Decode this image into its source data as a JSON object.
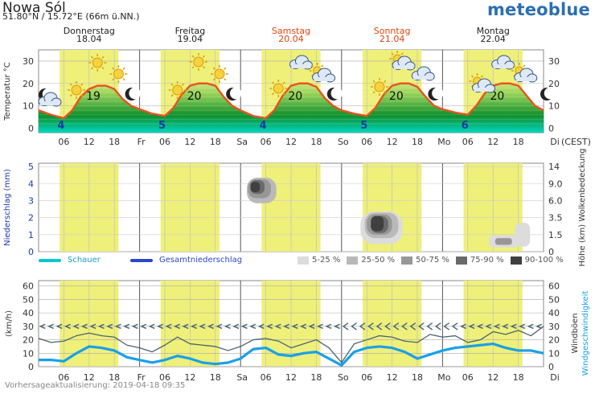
{
  "header": {
    "location": "Nowa Sól",
    "coords": "51.80°N / 15.72°E (66m ü.NN.)",
    "brand": "meteoblue"
  },
  "footer": {
    "update": "Vorhersageaktualisierung: 2019-04-18 09:35"
  },
  "days": [
    {
      "name": "Donnerstag",
      "date": "18.04",
      "weekend": false,
      "tmin": "4",
      "tmax": "19",
      "abbr": "",
      "icons": [
        "sun",
        "sun",
        "sun"
      ]
    },
    {
      "name": "Freitag",
      "date": "19.04",
      "weekend": false,
      "tmin": "5",
      "tmax": "20",
      "abbr": "Fr",
      "icons": [
        "sun",
        "sun",
        "sun"
      ]
    },
    {
      "name": "Samstag",
      "date": "20.04",
      "weekend": true,
      "tmin": "4",
      "tmax": "20",
      "abbr": "Sa",
      "icons": [
        "sun",
        "cloud",
        "suncloud"
      ]
    },
    {
      "name": "Sonntag",
      "date": "21.04",
      "weekend": true,
      "tmin": "5",
      "tmax": "20",
      "abbr": "So",
      "icons": [
        "sun",
        "suncloud",
        "cloud"
      ]
    },
    {
      "name": "Montag",
      "date": "22.04",
      "weekend": false,
      "tmin": "6",
      "tmax": "20",
      "abbr": "Mo",
      "icons": [
        "suncloud",
        "cloud",
        "suncloud"
      ]
    }
  ],
  "next_day_abbr": "Di",
  "x_hour_labels": [
    "06",
    "12",
    "18"
  ],
  "timezone_label": "(CEST)",
  "colors": {
    "day_band": "#eef07a",
    "temp_line": "#e8531f",
    "temp_green_dark": "#0f8f2a",
    "temp_green_light": "#9ad35a",
    "shower": "#00c8d6",
    "total_precip": "#2a48c8",
    "wind_line": "#1aa0e8",
    "gust_line": "#4a6472",
    "brand": "#2c6fb2",
    "weekend_label": "#e0430e"
  },
  "legend": {
    "shower": "Schauer",
    "total_precip": "Gesamtniederschlag",
    "cloud_levels": [
      {
        "label": "5-25 %",
        "color": "#dcdcdc"
      },
      {
        "label": "25-50 %",
        "color": "#b9b9b9"
      },
      {
        "label": "50-75 %",
        "color": "#979797"
      },
      {
        "label": "75-90 %",
        "color": "#6a6a6a"
      },
      {
        "label": "90-100 %",
        "color": "#404040"
      }
    ]
  },
  "chart_data": [
    {
      "type": "area",
      "title": "",
      "ylabel": "Temperatur °C",
      "ylim": [
        -2,
        35
      ],
      "yticks": [
        0,
        10,
        20,
        30
      ],
      "x_unit": "hours since Thursday 18.04 00:00 (CEST)",
      "xlim": [
        0,
        120
      ],
      "grid": true,
      "series": [
        {
          "name": "Temperatur",
          "x": [
            0,
            3,
            6,
            8,
            10,
            12,
            14,
            16,
            18,
            20,
            22,
            24,
            27,
            30,
            32,
            34,
            36,
            38,
            40,
            42,
            44,
            46,
            48,
            51,
            54,
            56,
            58,
            60,
            62,
            64,
            66,
            68,
            70,
            72,
            75,
            78,
            80,
            82,
            84,
            86,
            88,
            90,
            92,
            94,
            96,
            99,
            102,
            104,
            106,
            108,
            110,
            112,
            114,
            116,
            118,
            120
          ],
          "values": [
            8,
            6,
            4.5,
            8,
            14,
            17.5,
            19,
            19,
            17.5,
            13,
            10,
            8.5,
            6.5,
            5.5,
            9,
            15,
            19,
            20,
            20,
            19,
            14,
            10,
            8,
            5.5,
            4.5,
            8,
            14.5,
            19,
            20,
            20,
            18.5,
            13.5,
            10,
            8,
            6.5,
            5.5,
            9,
            15,
            19,
            20,
            20,
            18.5,
            14,
            10,
            8.5,
            7,
            6,
            10,
            15.5,
            19,
            20,
            20,
            19,
            14.5,
            10,
            8
          ]
        }
      ],
      "annotations": {
        "daily_min": [
          4,
          5,
          4,
          5,
          6
        ],
        "daily_max": [
          19,
          20,
          20,
          20,
          20
        ]
      }
    },
    {
      "type": "heatmap",
      "title": "",
      "ylabel_left": "Niederschlag (mm)",
      "ylim_left": [
        0,
        5
      ],
      "yticks_left": [
        0,
        1,
        2,
        3,
        4,
        5
      ],
      "ylabel_right": "Höhe (km) Wolkenbedeckung",
      "yticks_right": [
        "0",
        "1.5",
        "3.5",
        "6.0",
        "9.0",
        "14"
      ],
      "x_unit": "hours since Thursday 18.04 00:00 (CEST)",
      "precipitation_series": [
        {
          "name": "Schauer",
          "values": [
            0,
            0,
            0,
            0,
            0
          ]
        },
        {
          "name": "Gesamtniederschlag",
          "values": [
            0,
            0,
            0,
            0,
            0
          ]
        }
      ],
      "cloud_blobs": [
        {
          "x": 53,
          "y": 3.6,
          "rx": 3.5,
          "ry": 0.75,
          "level": 1
        },
        {
          "x": 52.5,
          "y": 3.7,
          "rx": 2.7,
          "ry": 0.55,
          "level": 2
        },
        {
          "x": 52,
          "y": 3.8,
          "rx": 1.7,
          "ry": 0.4,
          "level": 3
        },
        {
          "x": 51.5,
          "y": 3.8,
          "rx": 1.1,
          "ry": 0.3,
          "level": 4
        },
        {
          "x": 81.5,
          "y": 1.4,
          "rx": 5.0,
          "ry": 0.95,
          "level": 0
        },
        {
          "x": 81.5,
          "y": 1.55,
          "rx": 4.0,
          "ry": 0.75,
          "level": 1
        },
        {
          "x": 81,
          "y": 1.6,
          "rx": 3.0,
          "ry": 0.6,
          "level": 2
        },
        {
          "x": 81,
          "y": 1.6,
          "rx": 2.1,
          "ry": 0.5,
          "level": 3
        },
        {
          "x": 80.5,
          "y": 1.65,
          "rx": 1.5,
          "ry": 0.45,
          "level": 4
        },
        {
          "x": 110.5,
          "y": 0.6,
          "rx": 3.5,
          "ry": 0.35,
          "level": 0
        },
        {
          "x": 110.5,
          "y": 0.6,
          "rx": 2.0,
          "ry": 0.2,
          "level": 2
        },
        {
          "x": 115,
          "y": 1.0,
          "rx": 1.8,
          "ry": 0.7,
          "level": 0
        }
      ]
    },
    {
      "type": "line",
      "title": "",
      "ylabel": "(km/h)",
      "ylabel_right": "Windböen Windgeschwindigkeit",
      "ylim": [
        0,
        60
      ],
      "yticks": [
        0,
        10,
        20,
        30,
        40,
        50,
        60
      ],
      "x_unit": "hours since Thursday 18.04 00:00 (CEST)",
      "wind_direction_arrows_at_kmh": 30,
      "series": [
        {
          "name": "Windböen",
          "x": [
            0,
            3,
            6,
            9,
            12,
            15,
            18,
            21,
            24,
            27,
            30,
            33,
            36,
            39,
            42,
            45,
            48,
            51,
            54,
            57,
            60,
            63,
            66,
            69,
            72,
            75,
            78,
            81,
            84,
            87,
            90,
            93,
            96,
            99,
            102,
            105,
            108,
            111,
            114,
            117,
            120
          ],
          "values": [
            21,
            18,
            19,
            23,
            25,
            23,
            22,
            16,
            14,
            11,
            16,
            22,
            17,
            16,
            15,
            12,
            15,
            20,
            21,
            19,
            14,
            17,
            20,
            14,
            3,
            17,
            20,
            23,
            22,
            19,
            18,
            24,
            22,
            23,
            18,
            20,
            26,
            24,
            27,
            23,
            30
          ]
        },
        {
          "name": "Windgeschwindigkeit",
          "x": [
            0,
            3,
            6,
            9,
            12,
            15,
            18,
            21,
            24,
            27,
            30,
            33,
            36,
            39,
            42,
            45,
            48,
            51,
            54,
            57,
            60,
            63,
            66,
            69,
            72,
            75,
            78,
            81,
            84,
            87,
            90,
            93,
            96,
            99,
            102,
            105,
            108,
            111,
            114,
            117,
            120
          ],
          "values": [
            5,
            5,
            4,
            10,
            15,
            14,
            12,
            7,
            5,
            3,
            5,
            8,
            6,
            3,
            2,
            3,
            6,
            13,
            14,
            9,
            8,
            10,
            11,
            6,
            1,
            11,
            14,
            15,
            14,
            11,
            6,
            9,
            12,
            14,
            15,
            16,
            17,
            14,
            12,
            12,
            10
          ]
        }
      ]
    }
  ]
}
